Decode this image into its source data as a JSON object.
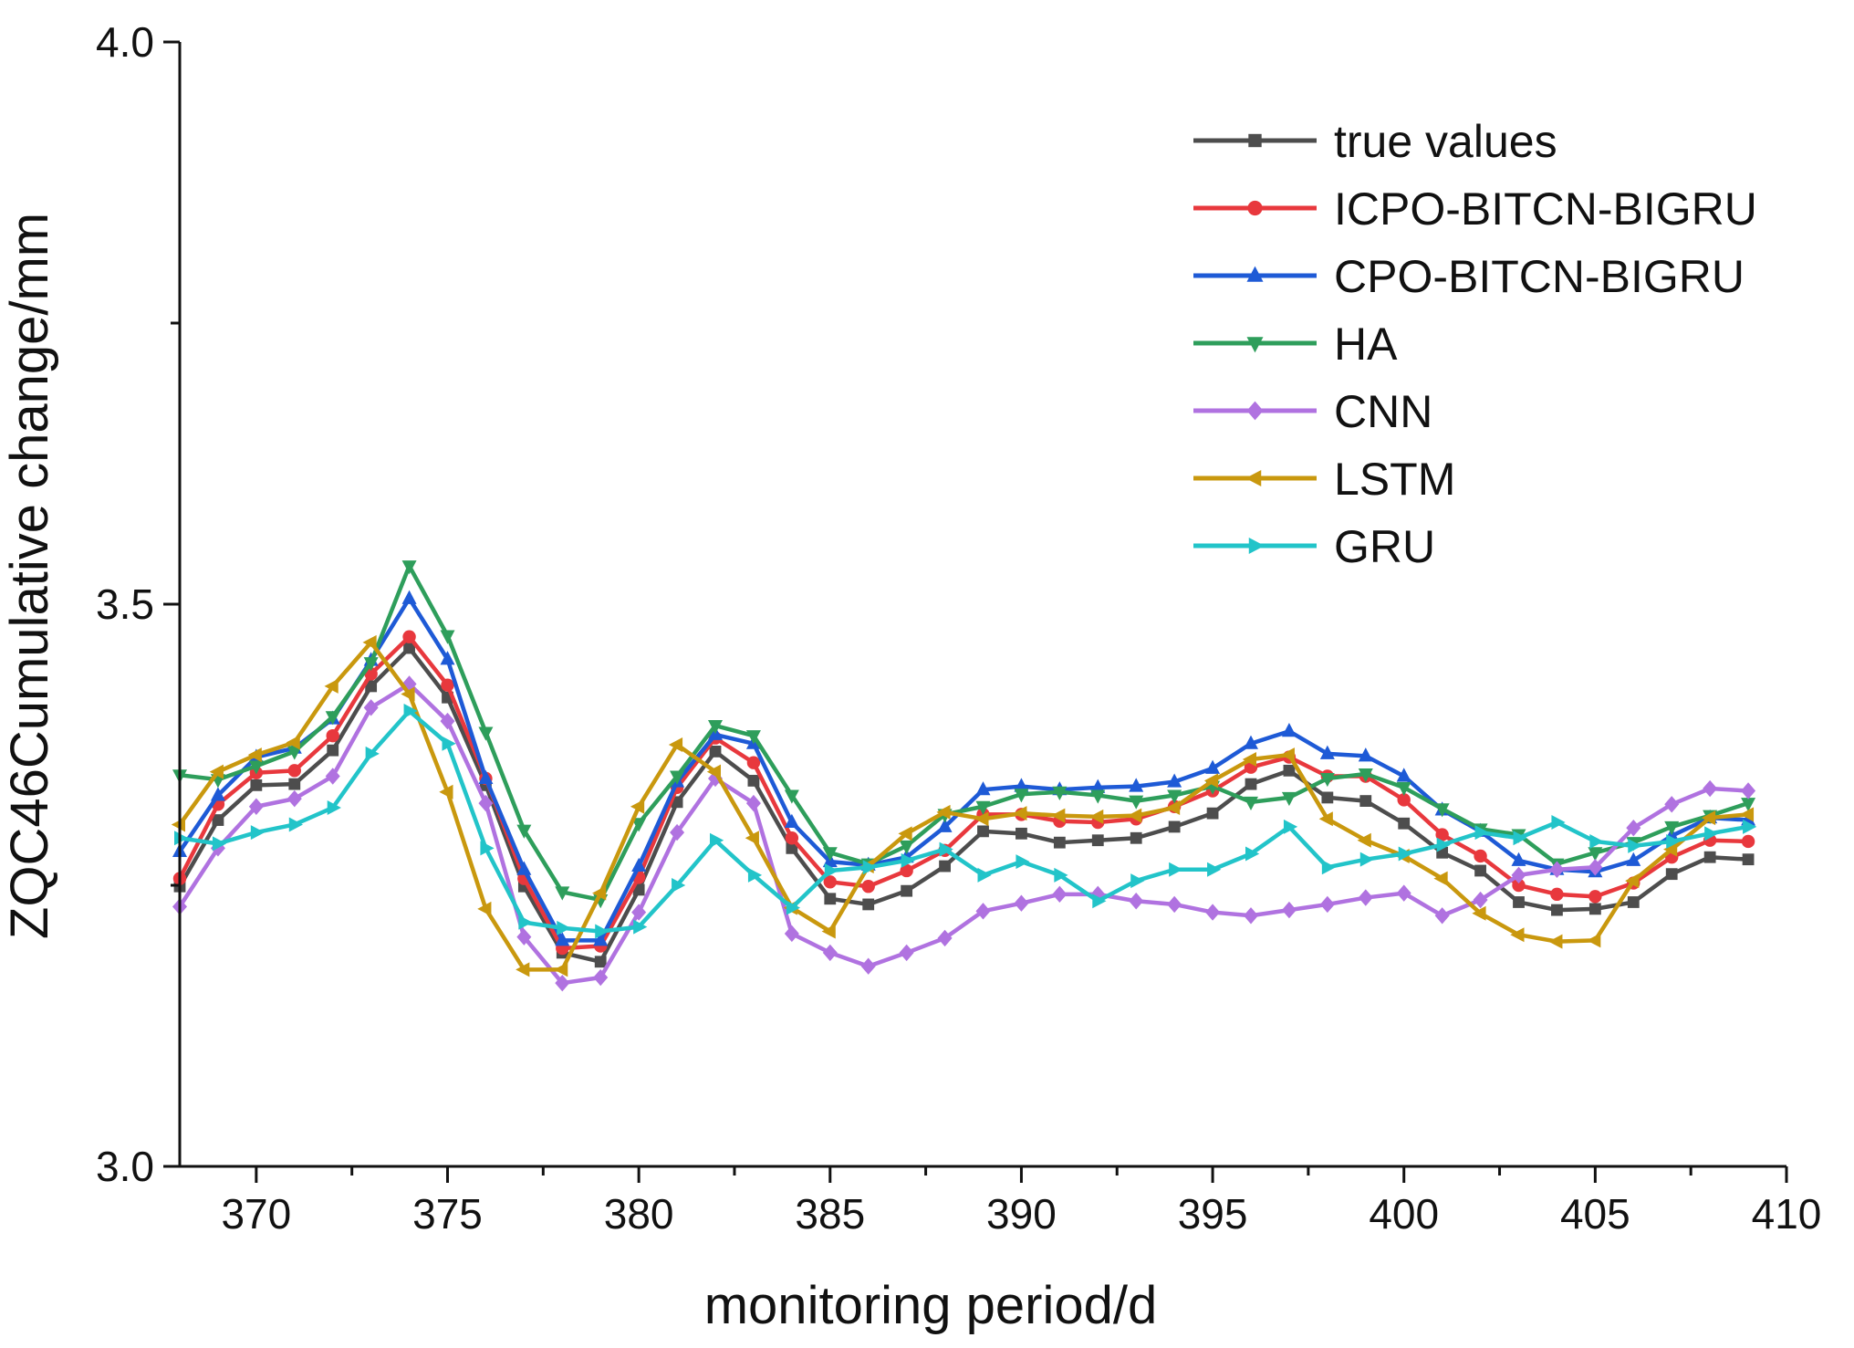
{
  "chart_data": {
    "type": "line",
    "title": "",
    "xlabel": "monitoring period/d",
    "ylabel": "ZQC46Cumulative change/mm",
    "xlim": [
      368,
      410
    ],
    "ylim": [
      3.0,
      4.0
    ],
    "xticks": [
      370,
      375,
      380,
      385,
      390,
      395,
      400,
      405,
      410
    ],
    "xtick_labels": [
      "370",
      "375",
      "380",
      "385",
      "390",
      "395",
      "400",
      "405",
      "410"
    ],
    "yticks": [
      3.0,
      3.5,
      4.0
    ],
    "ytick_labels": [
      "3.0",
      "3.5",
      "4.0"
    ],
    "legend_position": "top-right",
    "x": [
      368,
      369,
      370,
      371,
      372,
      373,
      374,
      375,
      376,
      377,
      378,
      379,
      380,
      381,
      382,
      383,
      384,
      385,
      386,
      387,
      388,
      389,
      390,
      391,
      392,
      393,
      394,
      395,
      396,
      397,
      398,
      399,
      400,
      401,
      402,
      403,
      404,
      405,
      406,
      407,
      408,
      409
    ],
    "series": [
      {
        "name": "true values",
        "color": "#4d4d4d",
        "marker": "square",
        "values": [
          3.249,
          3.308,
          3.339,
          3.34,
          3.37,
          3.427,
          3.461,
          3.417,
          3.339,
          3.249,
          3.19,
          3.182,
          3.246,
          3.324,
          3.369,
          3.343,
          3.283,
          3.238,
          3.233,
          3.245,
          3.267,
          3.298,
          3.296,
          3.288,
          3.29,
          3.292,
          3.302,
          3.314,
          3.34,
          3.352,
          3.328,
          3.325,
          3.305,
          3.279,
          3.263,
          3.235,
          3.228,
          3.229,
          3.235,
          3.26,
          3.275,
          3.273
        ]
      },
      {
        "name": "ICPO-BITCN-BIGRU",
        "color": "#e8383d",
        "marker": "circle",
        "values": [
          3.256,
          3.322,
          3.35,
          3.352,
          3.383,
          3.438,
          3.471,
          3.428,
          3.345,
          3.256,
          3.194,
          3.196,
          3.257,
          3.337,
          3.381,
          3.359,
          3.292,
          3.253,
          3.249,
          3.263,
          3.281,
          3.313,
          3.313,
          3.307,
          3.306,
          3.309,
          3.32,
          3.334,
          3.355,
          3.364,
          3.347,
          3.347,
          3.326,
          3.295,
          3.276,
          3.25,
          3.242,
          3.24,
          3.252,
          3.275,
          3.29,
          3.289
        ]
      },
      {
        "name": "CPO-BITCN-BIGRU",
        "color": "#1e5ad6",
        "marker": "triangle-up",
        "values": [
          3.28,
          3.33,
          3.364,
          3.372,
          3.398,
          3.45,
          3.505,
          3.451,
          3.345,
          3.264,
          3.201,
          3.201,
          3.267,
          3.342,
          3.384,
          3.376,
          3.306,
          3.271,
          3.268,
          3.275,
          3.302,
          3.335,
          3.338,
          3.335,
          3.337,
          3.338,
          3.342,
          3.354,
          3.376,
          3.387,
          3.367,
          3.365,
          3.347,
          3.317,
          3.298,
          3.272,
          3.264,
          3.262,
          3.272,
          3.294,
          3.31,
          3.308
        ]
      },
      {
        "name": "HA",
        "color": "#2e9e5b",
        "marker": "triangle-down",
        "values": [
          3.348,
          3.344,
          3.356,
          3.369,
          3.4,
          3.448,
          3.534,
          3.472,
          3.386,
          3.299,
          3.244,
          3.237,
          3.305,
          3.347,
          3.392,
          3.383,
          3.33,
          3.279,
          3.269,
          3.285,
          3.313,
          3.32,
          3.331,
          3.333,
          3.33,
          3.325,
          3.33,
          3.338,
          3.324,
          3.328,
          3.345,
          3.349,
          3.337,
          3.318,
          3.3,
          3.295,
          3.269,
          3.279,
          3.288,
          3.302,
          3.312,
          3.323
        ]
      },
      {
        "name": "CNN",
        "color": "#b072e0",
        "marker": "diamond",
        "values": [
          3.231,
          3.283,
          3.32,
          3.327,
          3.347,
          3.408,
          3.429,
          3.396,
          3.323,
          3.204,
          3.163,
          3.168,
          3.226,
          3.297,
          3.345,
          3.323,
          3.207,
          3.19,
          3.178,
          3.19,
          3.203,
          3.227,
          3.234,
          3.242,
          3.242,
          3.236,
          3.233,
          3.226,
          3.223,
          3.228,
          3.233,
          3.239,
          3.243,
          3.223,
          3.237,
          3.259,
          3.264,
          3.266,
          3.301,
          3.322,
          3.336,
          3.334
        ]
      },
      {
        "name": "LSTM",
        "color": "#c9980e",
        "marker": "triangle-left",
        "values": [
          3.304,
          3.351,
          3.366,
          3.377,
          3.427,
          3.466,
          3.42,
          3.333,
          3.229,
          3.175,
          3.175,
          3.243,
          3.32,
          3.375,
          3.351,
          3.292,
          3.23,
          3.209,
          3.267,
          3.296,
          3.315,
          3.309,
          3.314,
          3.312,
          3.311,
          3.312,
          3.319,
          3.343,
          3.362,
          3.366,
          3.309,
          3.29,
          3.276,
          3.256,
          3.225,
          3.206,
          3.2,
          3.201,
          3.254,
          3.282,
          3.31,
          3.313
        ]
      },
      {
        "name": "GRU",
        "color": "#22c4c9",
        "marker": "triangle-right",
        "values": [
          3.292,
          3.287,
          3.297,
          3.304,
          3.319,
          3.367,
          3.405,
          3.376,
          3.283,
          3.217,
          3.212,
          3.209,
          3.213,
          3.25,
          3.29,
          3.259,
          3.23,
          3.263,
          3.266,
          3.272,
          3.282,
          3.259,
          3.271,
          3.259,
          3.236,
          3.254,
          3.264,
          3.264,
          3.278,
          3.302,
          3.266,
          3.273,
          3.278,
          3.286,
          3.297,
          3.292,
          3.306,
          3.289,
          3.285,
          3.289,
          3.296,
          3.302
        ]
      }
    ]
  }
}
